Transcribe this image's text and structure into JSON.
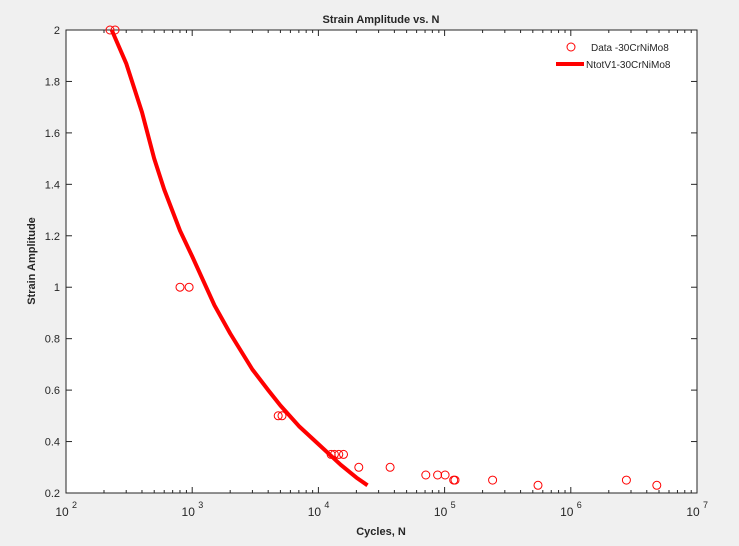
{
  "chart_data": {
    "type": "scatter",
    "title": "Strain Amplitude vs. N",
    "xlabel": "Cycles, N",
    "ylabel": "Strain Amplitude",
    "xscale": "log",
    "xlim": [
      100,
      10000000
    ],
    "ylim": [
      0.2,
      2
    ],
    "grid": false,
    "legend_position": "northeast",
    "x_ticks": [
      {
        "base": "10",
        "exp": "2",
        "value": 100
      },
      {
        "base": "10",
        "exp": "3",
        "value": 1000
      },
      {
        "base": "10",
        "exp": "4",
        "value": 10000
      },
      {
        "base": "10",
        "exp": "5",
        "value": 100000
      },
      {
        "base": "10",
        "exp": "6",
        "value": 1000000
      },
      {
        "base": "10",
        "exp": "7",
        "value": 10000000
      }
    ],
    "y_ticks": [
      "0.2",
      "0.4",
      "0.6",
      "0.8",
      "1",
      "1.2",
      "1.4",
      "1.6",
      "1.8",
      "2"
    ],
    "series": [
      {
        "name": "Data -30CrNiMo8",
        "kind": "markers",
        "marker": "circle-open",
        "color": "#ff0000",
        "points": [
          [
            223,
            2.0
          ],
          [
            245,
            2.0
          ],
          [
            800,
            1.0
          ],
          [
            945,
            1.0
          ],
          [
            4800,
            0.5
          ],
          [
            5150,
            0.5
          ],
          [
            12600,
            0.35
          ],
          [
            13400,
            0.35
          ],
          [
            14500,
            0.35
          ],
          [
            15800,
            0.35
          ],
          [
            20900,
            0.3
          ],
          [
            37000,
            0.3
          ],
          [
            71000,
            0.27
          ],
          [
            88000,
            0.27
          ],
          [
            101000,
            0.27
          ],
          [
            118000,
            0.25
          ],
          [
            121000,
            0.25
          ],
          [
            240000,
            0.25
          ],
          [
            550000,
            0.23
          ],
          [
            2760000,
            0.25
          ],
          [
            4800000,
            0.23
          ]
        ]
      },
      {
        "name": "NtotV1-30CrNiMo8",
        "kind": "line",
        "color": "#ff0000",
        "linewidth": 4,
        "points": [
          [
            230,
            2.0
          ],
          [
            300,
            1.87
          ],
          [
            400,
            1.68
          ],
          [
            500,
            1.5
          ],
          [
            600,
            1.38
          ],
          [
            800,
            1.22
          ],
          [
            1000,
            1.12
          ],
          [
            1500,
            0.93
          ],
          [
            2000,
            0.82
          ],
          [
            3000,
            0.68
          ],
          [
            4000,
            0.6
          ],
          [
            5000,
            0.54
          ],
          [
            7000,
            0.46
          ],
          [
            10000,
            0.39
          ],
          [
            15000,
            0.31
          ],
          [
            20000,
            0.26
          ],
          [
            24500,
            0.23
          ]
        ]
      }
    ]
  }
}
